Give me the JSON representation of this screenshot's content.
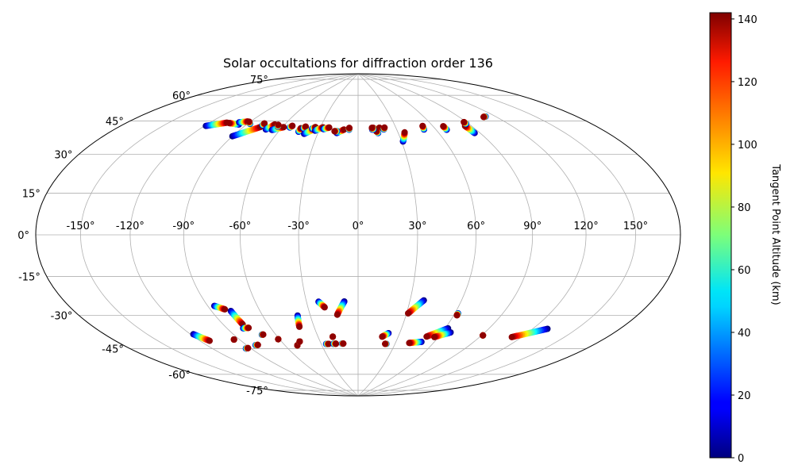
{
  "chart_data": {
    "type": "scatter",
    "projection": "hammer",
    "title": "Solar occultations for diffraction order 136",
    "grid": true,
    "x_ticks": [
      "-150°",
      "-120°",
      "-90°",
      "-60°",
      "-30°",
      "0°",
      "30°",
      "60°",
      "90°",
      "120°",
      "150°"
    ],
    "x_tick_values": [
      -150,
      -120,
      -90,
      -60,
      -30,
      0,
      30,
      60,
      90,
      120,
      150
    ],
    "y_ticks": [
      "-75°",
      "-60°",
      "-45°",
      "-30°",
      "-15°",
      "0°",
      "15°",
      "30°",
      "45°",
      "60°",
      "75°"
    ],
    "y_tick_values": [
      -75,
      -60,
      -45,
      -30,
      -15,
      0,
      15,
      30,
      45,
      60,
      75
    ],
    "colorbar": {
      "label": "Tangent Point Altitude (km)",
      "range": [
        0,
        142
      ],
      "ticks": [
        "0",
        "20",
        "40",
        "60",
        "80",
        "100",
        "120",
        "140"
      ],
      "tick_values": [
        0,
        20,
        40,
        60,
        80,
        100,
        120,
        140
      ],
      "colormap": "jet"
    },
    "tracks": [
      {
        "lon_start": -119,
        "lat_start": 51,
        "lon_end": -107,
        "lat_end": 54
      },
      {
        "lon_start": -96,
        "lat_start": 54,
        "lon_end": -105,
        "lat_end": 54
      },
      {
        "lon_start": -90,
        "lat_start": 48,
        "lon_end": -77,
        "lat_end": 54
      },
      {
        "lon_start": -98,
        "lat_start": 55,
        "lon_end": -92,
        "lat_end": 56
      },
      {
        "lon_start": -88,
        "lat_start": 55,
        "lon_end": -91,
        "lat_end": 56
      },
      {
        "lon_start": -77,
        "lat_start": 55,
        "lon_end": -77,
        "lat_end": 56
      },
      {
        "lon_start": -71,
        "lat_start": 53,
        "lon_end": -68,
        "lat_end": 56
      },
      {
        "lon_start": -66,
        "lat_start": 53,
        "lon_end": -59,
        "lat_end": 55
      },
      {
        "lon_start": -64,
        "lat_start": 55,
        "lon_end": -65,
        "lat_end": 56
      },
      {
        "lon_start": -54,
        "lat_start": 55,
        "lon_end": -53,
        "lat_end": 56
      },
      {
        "lon_start": -45,
        "lat_start": 53,
        "lon_end": -45,
        "lat_end": 55
      },
      {
        "lon_start": -43,
        "lat_start": 55,
        "lon_end": -42,
        "lat_end": 56
      },
      {
        "lon_start": -40,
        "lat_start": 52,
        "lon_end": -34,
        "lat_end": 55
      },
      {
        "lon_start": -36,
        "lat_start": 55,
        "lon_end": -34,
        "lat_end": 56
      },
      {
        "lon_start": -33,
        "lat_start": 54,
        "lon_end": -28,
        "lat_end": 56
      },
      {
        "lon_start": -27,
        "lat_start": 55,
        "lon_end": -23,
        "lat_end": 56
      },
      {
        "lon_start": -16,
        "lat_start": 53,
        "lon_end": -11,
        "lat_end": 55
      },
      {
        "lon_start": -7,
        "lat_start": 55,
        "lon_end": -7,
        "lat_end": 56
      },
      {
        "lon_start": -16,
        "lat_start": 54,
        "lon_end": -18,
        "lat_end": 54
      },
      {
        "lon_start": 11,
        "lat_start": 55,
        "lon_end": 12,
        "lat_end": 56
      },
      {
        "lon_start": 15,
        "lat_start": 55,
        "lon_end": 17,
        "lat_end": 56
      },
      {
        "lon_start": 20,
        "lat_start": 55,
        "lon_end": 21,
        "lat_end": 56
      },
      {
        "lon_start": 15,
        "lat_start": 53,
        "lon_end": 14,
        "lat_end": 54
      },
      {
        "lon_start": 12,
        "lat_start": 55,
        "lon_end": 11,
        "lat_end": 56
      },
      {
        "lon_start": 31,
        "lat_start": 48,
        "lon_end": 35,
        "lat_end": 53
      },
      {
        "lon_start": 51,
        "lat_start": 54,
        "lon_end": 52,
        "lat_end": 56
      },
      {
        "lon_start": 68,
        "lat_start": 53,
        "lon_end": 68,
        "lat_end": 55
      },
      {
        "lon_start": 86,
        "lat_start": 50,
        "lon_end": 85,
        "lat_end": 54
      },
      {
        "lon_start": 88,
        "lat_start": 55,
        "lon_end": 88,
        "lat_end": 56
      },
      {
        "lon_start": 112,
        "lat_start": 57,
        "lon_end": 110,
        "lat_end": 57
      },
      {
        "lon_start": -118,
        "lat_start": -46,
        "lon_end": -113,
        "lat_end": -50
      },
      {
        "lon_start": -86,
        "lat_start": -34,
        "lon_end": -81,
        "lat_end": -36
      },
      {
        "lon_start": -78,
        "lat_start": -37,
        "lon_end": -77,
        "lat_end": -44
      },
      {
        "lon_start": -79,
        "lat_start": -46,
        "lon_end": -75,
        "lat_end": -46
      },
      {
        "lon_start": -94,
        "lat_start": -51,
        "lon_end": -94,
        "lat_end": -51
      },
      {
        "lon_start": -94,
        "lat_start": -56,
        "lon_end": -92,
        "lat_end": -56
      },
      {
        "lon_start": -83,
        "lat_start": -55,
        "lon_end": -81,
        "lat_end": -55
      },
      {
        "lon_start": -70,
        "lat_start": -50,
        "lon_end": -69,
        "lat_end": -50
      },
      {
        "lon_start": -61,
        "lat_start": -53,
        "lon_end": -61,
        "lat_end": -53
      },
      {
        "lon_start": -50,
        "lat_start": -57,
        "lon_end": -50,
        "lat_end": -57
      },
      {
        "lon_start": -46,
        "lat_start": -55,
        "lon_end": -46,
        "lat_end": -55
      },
      {
        "lon_start": -38,
        "lat_start": -41,
        "lon_end": -40,
        "lat_end": -47
      },
      {
        "lon_start": -23,
        "lat_start": -34,
        "lon_end": -20,
        "lat_end": -37
      },
      {
        "lon_start": -8,
        "lat_start": -34,
        "lon_end": -13,
        "lat_end": -41
      },
      {
        "lon_start": -26,
        "lat_start": -57,
        "lon_end": -24,
        "lat_end": -57
      },
      {
        "lon_start": -20,
        "lat_start": -57,
        "lon_end": -18,
        "lat_end": -57
      },
      {
        "lon_start": -19,
        "lat_start": -53,
        "lon_end": -19,
        "lat_end": -53
      },
      {
        "lon_start": -13,
        "lat_start": -57,
        "lon_end": -12,
        "lat_end": -57
      },
      {
        "lon_start": 38,
        "lat_start": -33,
        "lon_end": 31,
        "lat_end": -40
      },
      {
        "lon_start": 22,
        "lat_start": -51,
        "lon_end": 18,
        "lat_end": -53
      },
      {
        "lon_start": 23,
        "lat_start": -57,
        "lon_end": 22,
        "lat_end": -57
      },
      {
        "lon_start": 50,
        "lat_start": -55,
        "lon_end": 41,
        "lat_end": -56
      },
      {
        "lon_start": 62,
        "lat_start": -47,
        "lon_end": 51,
        "lat_end": -52
      },
      {
        "lon_start": 66,
        "lat_start": -49,
        "lon_end": 57,
        "lat_end": -52
      },
      {
        "lon_start": 62,
        "lat_start": -39,
        "lon_end": 62,
        "lat_end": -40
      },
      {
        "lon_start": 91,
        "lat_start": -49,
        "lon_end": 91,
        "lat_end": -49
      },
      {
        "lon_start": 130,
        "lat_start": -42,
        "lon_end": 113,
        "lat_end": -48
      }
    ]
  }
}
